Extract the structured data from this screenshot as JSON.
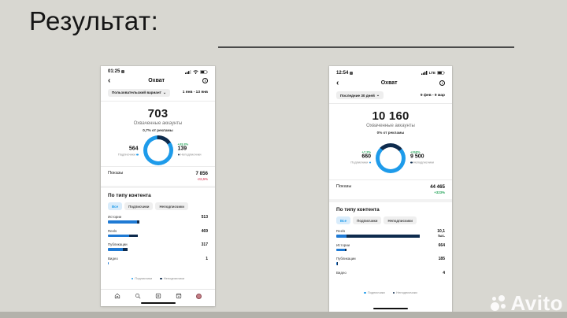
{
  "slide": {
    "title": "Результат:",
    "watermark_text": "Avito",
    "bg_color": "#d8d7d1",
    "accent_blue": "#1e9bea",
    "navy": "#0e2b4d",
    "green": "#27a55b",
    "red": "#e0637a"
  },
  "icons": {
    "back": "‹",
    "chevron_down": "⌄",
    "info": "i"
  },
  "phones": [
    {
      "statusbar": {
        "time": "01:25",
        "network_label": ""
      },
      "header": {
        "title": "Охват"
      },
      "filter": {
        "label": "Пользовательский вариант",
        "date_range": "1 янв - 13 янв"
      },
      "summary": {
        "value": "703",
        "label": "Охваченные аккаунты",
        "ads_share": "0,7% от рекламы"
      },
      "donut": {
        "left": {
          "delta": "",
          "value": "564",
          "label": "Подписчики"
        },
        "right": {
          "delta": "+33,8%",
          "value": "139",
          "label": "Неподписчики"
        },
        "dark_from_deg": -5,
        "dark_size_deg": 62
      },
      "impressions": {
        "label": "Показы",
        "value": "7 856",
        "delta": "-22,5%",
        "delta_color": "#e0637a"
      },
      "content": {
        "title": "По типу контента",
        "tabs": [
          {
            "label": "Все"
          },
          {
            "label": "Подписчики"
          },
          {
            "label": "Неподписчики"
          }
        ],
        "rows": [
          {
            "label": "Истории",
            "value": "513",
            "unit": "",
            "blue": 37,
            "dark": 3
          },
          {
            "label": "Reels",
            "value": "469",
            "unit": "",
            "blue": 27,
            "dark": 11
          },
          {
            "label": "Публикации",
            "value": "317",
            "unit": "",
            "blue": 19,
            "dark": 6
          },
          {
            "label": "Видео",
            "value": "1",
            "unit": "",
            "blue": 1,
            "dark": 0
          }
        ],
        "legend": [
          {
            "label": "Подписчики"
          },
          {
            "label": "Неподписчики"
          }
        ]
      }
    },
    {
      "statusbar": {
        "time": "12:54",
        "network_label": "LTE"
      },
      "header": {
        "title": "Охват"
      },
      "filter": {
        "label": "Последние 30 дней",
        "date_range": "9 фев - 9 мар"
      },
      "summary": {
        "value": "10 160",
        "label": "Охваченные аккаунты",
        "ads_share": "0% от рекламы"
      },
      "donut": {
        "left": {
          "delta": "+7,3%",
          "value": "660",
          "label": "Подписчики"
        },
        "right": {
          "delta": "+268%",
          "value": "9 500",
          "label": "Неподписчики"
        },
        "dark_from_deg": -45,
        "dark_size_deg": 95
      },
      "impressions": {
        "label": "Показы",
        "value": "44 465",
        "delta": "+323%",
        "delta_color": "#27a55b"
      },
      "content": {
        "title": "По типу контента",
        "tabs": [
          {
            "label": "Все"
          },
          {
            "label": "Подписчики"
          },
          {
            "label": "Неподписчики"
          }
        ],
        "rows": [
          {
            "label": "Reels",
            "value": "10,1",
            "unit": "тыс.",
            "blue": 12,
            "dark": 83
          },
          {
            "label": "Истории",
            "value": "664",
            "unit": "",
            "blue": 10,
            "dark": 1.5
          },
          {
            "label": "Публикации",
            "value": "185",
            "unit": "",
            "blue": 1.2,
            "dark": 1
          },
          {
            "label": "Видео",
            "value": "4",
            "unit": "",
            "blue": 0,
            "dark": 0
          }
        ],
        "legend": [
          {
            "label": "Подписчики"
          },
          {
            "label": "Неподписчики"
          }
        ]
      }
    }
  ]
}
